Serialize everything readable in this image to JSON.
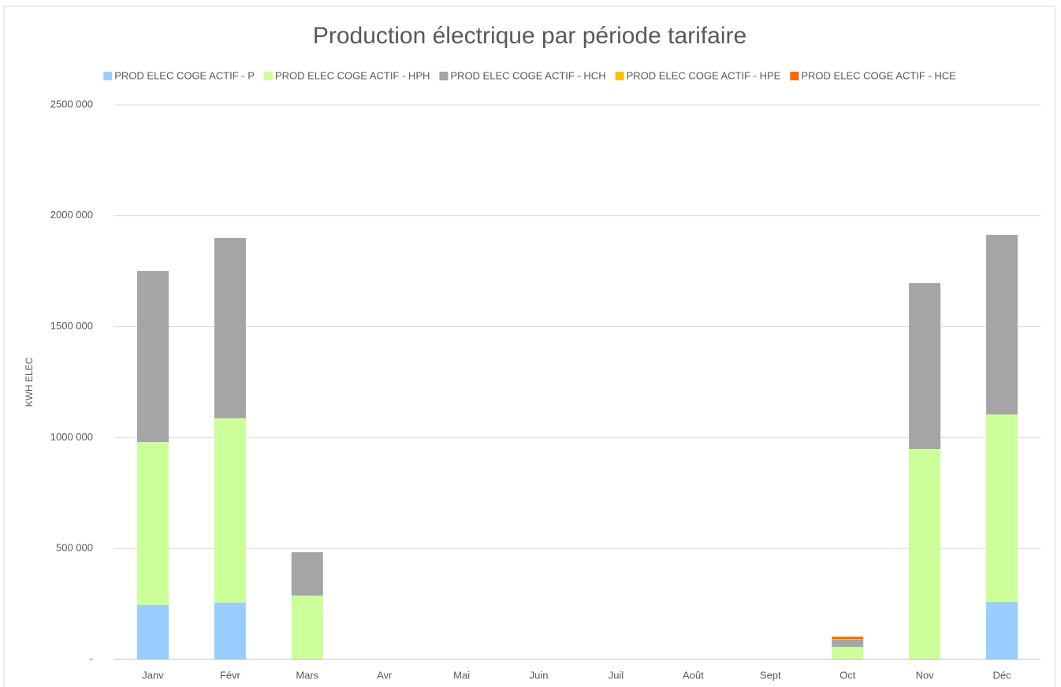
{
  "chart_data": {
    "type": "stacked_bar",
    "title": "Production électrique par période tarifaire",
    "y_label": "KWH ELEC",
    "categories": [
      "Janv",
      "Févr",
      "Mars",
      "Avr",
      "Mai",
      "Juin",
      "Juil",
      "Août",
      "Sept",
      "Oct",
      "Nov",
      "Déc"
    ],
    "series": [
      {
        "name": "PROD ELEC COGE ACTIF - P",
        "color": "#99ccff",
        "values": [
          245000,
          256000,
          0,
          0,
          0,
          0,
          0,
          0,
          0,
          0,
          0,
          259000
        ]
      },
      {
        "name": "PROD ELEC COGE ACTIF - HPH",
        "color": "#ccff99",
        "values": [
          735000,
          831000,
          288000,
          0,
          0,
          0,
          0,
          0,
          0,
          57000,
          948000,
          845000
        ]
      },
      {
        "name": "PROD ELEC COGE ACTIF - HCH",
        "color": "#a5a5a5",
        "values": [
          771000,
          813000,
          195000,
          0,
          0,
          0,
          0,
          0,
          0,
          32000,
          749000,
          810000
        ]
      },
      {
        "name": "PROD ELEC COGE ACTIF - HPE",
        "color": "#ffc000",
        "values": [
          0,
          0,
          0,
          0,
          0,
          0,
          0,
          0,
          0,
          3000,
          0,
          0
        ]
      },
      {
        "name": "PROD ELEC COGE ACTIF - HCE",
        "color": "#ff6600",
        "values": [
          0,
          0,
          0,
          0,
          0,
          0,
          0,
          0,
          0,
          10000,
          0,
          0
        ]
      }
    ],
    "ylim": [
      0,
      2500000
    ],
    "yticks": [
      {
        "value": 0,
        "label": "-"
      },
      {
        "value": 500000,
        "label": "500 000"
      },
      {
        "value": 1000000,
        "label": "1000 000"
      },
      {
        "value": 1500000,
        "label": "1500 000"
      },
      {
        "value": 2000000,
        "label": "2000 000"
      },
      {
        "value": 2500000,
        "label": "2500 000"
      }
    ],
    "grid": true,
    "legend": "top"
  }
}
